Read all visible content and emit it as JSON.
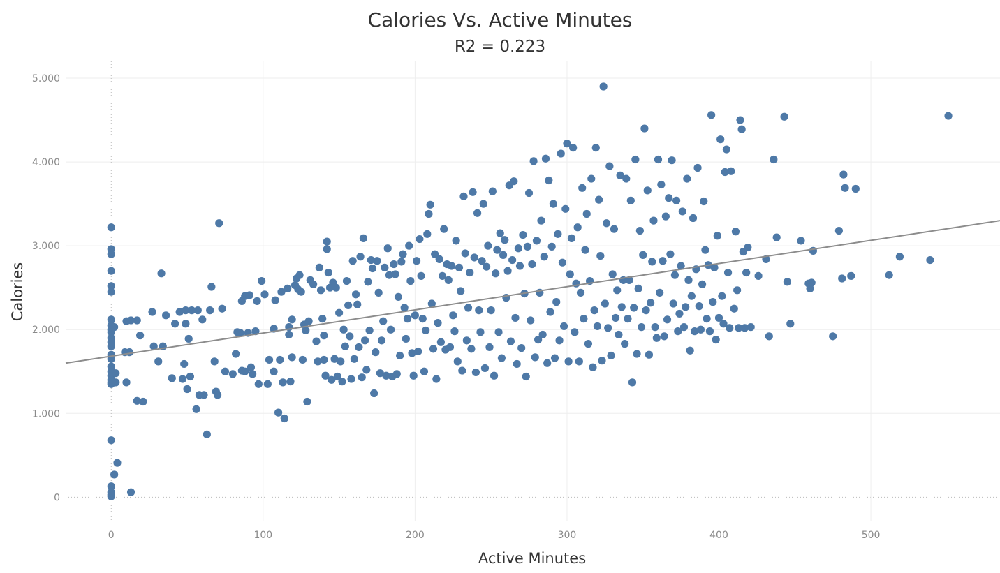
{
  "chart_data": {
    "type": "scatter",
    "title": "Calories Vs. Active Minutes",
    "subtitle": "R2 = 0.223",
    "xlabel": "Active Minutes",
    "ylabel": "Calories",
    "xlim": [
      -30,
      585
    ],
    "ylim": [
      -280,
      5200
    ],
    "xticks": [
      0,
      100,
      200,
      300,
      400,
      500
    ],
    "yticks": [
      0,
      1000,
      2000,
      3000,
      4000,
      5000
    ],
    "xtick_labels": [
      "0",
      "100",
      "200",
      "300",
      "400",
      "500"
    ],
    "ytick_labels": [
      "0",
      "1.000",
      "2.000",
      "3.000",
      "4.000",
      "5.000"
    ],
    "point_color": "#4e79a7",
    "trend_color": "#8c8c8c",
    "grid": true,
    "trendline": {
      "x": [
        -30,
        585
      ],
      "y": [
        1600,
        3300
      ]
    },
    "points": [
      [
        0,
        3220
      ],
      [
        0,
        2960
      ],
      [
        0,
        2900
      ],
      [
        0,
        2700
      ],
      [
        0,
        2520
      ],
      [
        0,
        2450
      ],
      [
        0,
        2120
      ],
      [
        0,
        2050
      ],
      [
        0,
        2000
      ],
      [
        0,
        1970
      ],
      [
        0,
        1900
      ],
      [
        0,
        1850
      ],
      [
        0,
        1800
      ],
      [
        0,
        1700
      ],
      [
        0,
        1650
      ],
      [
        0,
        1560
      ],
      [
        0,
        1500
      ],
      [
        0,
        1450
      ],
      [
        0,
        1400
      ],
      [
        0,
        1370
      ],
      [
        0,
        1350
      ],
      [
        0,
        680
      ],
      [
        0,
        130
      ],
      [
        0,
        60
      ],
      [
        0,
        30
      ],
      [
        0,
        10
      ],
      [
        2,
        2030
      ],
      [
        3,
        1480
      ],
      [
        3,
        1370
      ],
      [
        4,
        410
      ],
      [
        2,
        270
      ],
      [
        10,
        2100
      ],
      [
        9,
        1730
      ],
      [
        10,
        1370
      ],
      [
        12,
        1730
      ],
      [
        13,
        2110
      ],
      [
        13,
        60
      ],
      [
        17,
        2110
      ],
      [
        17,
        1150
      ],
      [
        21,
        1140
      ],
      [
        19,
        1930
      ],
      [
        27,
        2210
      ],
      [
        28,
        1800
      ],
      [
        31,
        1620
      ],
      [
        33,
        2670
      ],
      [
        34,
        1800
      ],
      [
        36,
        2170
      ],
      [
        40,
        1420
      ],
      [
        42,
        2070
      ],
      [
        45,
        2210
      ],
      [
        47,
        1410
      ],
      [
        48,
        1590
      ],
      [
        49,
        2230
      ],
      [
        49,
        2070
      ],
      [
        50,
        1290
      ],
      [
        51,
        1890
      ],
      [
        52,
        1440
      ],
      [
        53,
        2230
      ],
      [
        57,
        2230
      ],
      [
        56,
        1050
      ],
      [
        58,
        1220
      ],
      [
        60,
        2120
      ],
      [
        61,
        1220
      ],
      [
        63,
        750
      ],
      [
        65,
        2230
      ],
      [
        66,
        2510
      ],
      [
        68,
        1620
      ],
      [
        69,
        1260
      ],
      [
        70,
        1220
      ],
      [
        71,
        3270
      ],
      [
        73,
        2250
      ],
      [
        75,
        1500
      ],
      [
        80,
        1470
      ],
      [
        82,
        1710
      ],
      [
        83,
        1970
      ],
      [
        85,
        1960
      ],
      [
        86,
        1510
      ],
      [
        86,
        2340
      ],
      [
        88,
        2400
      ],
      [
        88,
        1500
      ],
      [
        90,
        1960
      ],
      [
        91,
        2410
      ],
      [
        92,
        1550
      ],
      [
        93,
        1470
      ],
      [
        95,
        1980
      ],
      [
        96,
        2340
      ],
      [
        97,
        1350
      ],
      [
        99,
        2580
      ],
      [
        101,
        2420
      ],
      [
        103,
        1350
      ],
      [
        104,
        1640
      ],
      [
        107,
        2010
      ],
      [
        107,
        1500
      ],
      [
        108,
        2350
      ],
      [
        110,
        1010
      ],
      [
        111,
        1640
      ],
      [
        112,
        2450
      ],
      [
        113,
        1370
      ],
      [
        114,
        940
      ],
      [
        116,
        2490
      ],
      [
        117,
        2030
      ],
      [
        117,
        1940
      ],
      [
        118,
        1380
      ],
      [
        119,
        2120
      ],
      [
        119,
        1670
      ],
      [
        121,
        2530
      ],
      [
        122,
        2610
      ],
      [
        123,
        2480
      ],
      [
        124,
        2650
      ],
      [
        125,
        2450
      ],
      [
        126,
        1640
      ],
      [
        127,
        2060
      ],
      [
        128,
        1990
      ],
      [
        129,
        1140
      ],
      [
        130,
        2100
      ],
      [
        131,
        2590
      ],
      [
        133,
        2540
      ],
      [
        135,
        1860
      ],
      [
        136,
        1620
      ],
      [
        137,
        2740
      ],
      [
        138,
        2470
      ],
      [
        139,
        2130
      ],
      [
        140,
        1930
      ],
      [
        140,
        1640
      ],
      [
        141,
        1450
      ],
      [
        142,
        3050
      ],
      [
        142,
        2960
      ],
      [
        143,
        2680
      ],
      [
        144,
        2500
      ],
      [
        145,
        1400
      ],
      [
        146,
        2560
      ],
      [
        147,
        1650
      ],
      [
        148,
        2500
      ],
      [
        149,
        1440
      ],
      [
        150,
        2200
      ],
      [
        151,
        1620
      ],
      [
        152,
        1380
      ],
      [
        153,
        2000
      ],
      [
        154,
        1800
      ],
      [
        155,
        2580
      ],
      [
        156,
        2290
      ],
      [
        157,
        1920
      ],
      [
        158,
        1410
      ],
      [
        159,
        2820
      ],
      [
        160,
        1650
      ],
      [
        161,
        2420
      ],
      [
        162,
        2300
      ],
      [
        163,
        1790
      ],
      [
        164,
        2870
      ],
      [
        165,
        1430
      ],
      [
        166,
        3090
      ],
      [
        167,
        1870
      ],
      [
        168,
        1520
      ],
      [
        169,
        2570
      ],
      [
        170,
        1990
      ],
      [
        171,
        2830
      ],
      [
        172,
        2730
      ],
      [
        173,
        1240
      ],
      [
        174,
        1730
      ],
      [
        175,
        2820
      ],
      [
        176,
        2440
      ],
      [
        177,
        1480
      ],
      [
        178,
        1870
      ],
      [
        179,
        2100
      ],
      [
        180,
        2740
      ],
      [
        181,
        1450
      ],
      [
        182,
        2970
      ],
      [
        183,
        2650
      ],
      [
        184,
        2000
      ],
      [
        185,
        1440
      ],
      [
        186,
        2780
      ],
      [
        187,
        2660
      ],
      [
        188,
        1470
      ],
      [
        189,
        2390
      ],
      [
        190,
        1690
      ],
      [
        191,
        2810
      ],
      [
        192,
        2900
      ],
      [
        193,
        2260
      ],
      [
        194,
        1890
      ],
      [
        195,
        2130
      ],
      [
        196,
        3000
      ],
      [
        197,
        2580
      ],
      [
        198,
        1720
      ],
      [
        199,
        1450
      ],
      [
        200,
        2170
      ],
      [
        201,
        2820
      ],
      [
        202,
        1740
      ],
      [
        203,
        3080
      ],
      [
        204,
        2640
      ],
      [
        205,
        2130
      ],
      [
        206,
        1500
      ],
      [
        207,
        1990
      ],
      [
        208,
        3140
      ],
      [
        209,
        3380
      ],
      [
        210,
        3490
      ],
      [
        211,
        2310
      ],
      [
        212,
        1770
      ],
      [
        213,
        2900
      ],
      [
        214,
        1410
      ],
      [
        215,
        2080
      ],
      [
        216,
        2840
      ],
      [
        217,
        1850
      ],
      [
        218,
        2640
      ],
      [
        219,
        3200
      ],
      [
        220,
        1760
      ],
      [
        221,
        2780
      ],
      [
        222,
        2590
      ],
      [
        223,
        1790
      ],
      [
        224,
        2760
      ],
      [
        225,
        2170
      ],
      [
        226,
        1980
      ],
      [
        227,
        3060
      ],
      [
        228,
        1620
      ],
      [
        229,
        2740
      ],
      [
        230,
        2460
      ],
      [
        231,
        1510
      ],
      [
        232,
        3590
      ],
      [
        233,
        2910
      ],
      [
        234,
        1870
      ],
      [
        235,
        2260
      ],
      [
        236,
        2680
      ],
      [
        237,
        1770
      ],
      [
        238,
        3640
      ],
      [
        239,
        2860
      ],
      [
        240,
        1490
      ],
      [
        241,
        3390
      ],
      [
        242,
        2230
      ],
      [
        243,
        1970
      ],
      [
        244,
        2820
      ],
      [
        245,
        3500
      ],
      [
        246,
        1540
      ],
      [
        247,
        2750
      ],
      [
        248,
        3000
      ],
      [
        249,
        1790
      ],
      [
        250,
        2230
      ],
      [
        251,
        3650
      ],
      [
        252,
        1450
      ],
      [
        253,
        2670
      ],
      [
        254,
        2950
      ],
      [
        255,
        1970
      ],
      [
        256,
        3150
      ],
      [
        257,
        1660
      ],
      [
        258,
        2890
      ],
      [
        259,
        3070
      ],
      [
        260,
        2380
      ],
      [
        261,
        2700
      ],
      [
        262,
        3720
      ],
      [
        263,
        1860
      ],
      [
        264,
        2830
      ],
      [
        265,
        3770
      ],
      [
        266,
        2140
      ],
      [
        267,
        1590
      ],
      [
        268,
        2970
      ],
      [
        269,
        2760
      ],
      [
        270,
        1780
      ],
      [
        271,
        3130
      ],
      [
        272,
        2430
      ],
      [
        273,
        1440
      ],
      [
        274,
        2990
      ],
      [
        275,
        3630
      ],
      [
        276,
        2110
      ],
      [
        277,
        2780
      ],
      [
        278,
        4010
      ],
      [
        279,
        1670
      ],
      [
        280,
        3060
      ],
      [
        281,
        1880
      ],
      [
        282,
        2440
      ],
      [
        283,
        3300
      ],
      [
        284,
        1940
      ],
      [
        285,
        2870
      ],
      [
        286,
        4040
      ],
      [
        287,
        1600
      ],
      [
        288,
        3780
      ],
      [
        289,
        2210
      ],
      [
        290,
        2990
      ],
      [
        291,
        3500
      ],
      [
        292,
        1660
      ],
      [
        293,
        2330
      ],
      [
        294,
        3140
      ],
      [
        295,
        1870
      ],
      [
        296,
        4100
      ],
      [
        297,
        2800
      ],
      [
        298,
        2040
      ],
      [
        299,
        3440
      ],
      [
        300,
        4220
      ],
      [
        301,
        1620
      ],
      [
        302,
        2660
      ],
      [
        303,
        3090
      ],
      [
        304,
        4170
      ],
      [
        305,
        1970
      ],
      [
        306,
        2550
      ],
      [
        307,
        3220
      ],
      [
        308,
        1620
      ],
      [
        309,
        2440
      ],
      [
        310,
        3690
      ],
      [
        311,
        2130
      ],
      [
        312,
        2950
      ],
      [
        313,
        3380
      ],
      [
        314,
        1830
      ],
      [
        315,
        2580
      ],
      [
        316,
        3800
      ],
      [
        317,
        1550
      ],
      [
        318,
        2230
      ],
      [
        319,
        4170
      ],
      [
        320,
        2040
      ],
      [
        321,
        3550
      ],
      [
        322,
        2880
      ],
      [
        323,
        1630
      ],
      [
        324,
        4900
      ],
      [
        325,
        2310
      ],
      [
        326,
        3270
      ],
      [
        327,
        2020
      ],
      [
        328,
        3950
      ],
      [
        329,
        1690
      ],
      [
        330,
        2660
      ],
      [
        331,
        3200
      ],
      [
        332,
        2140
      ],
      [
        333,
        2470
      ],
      [
        334,
        1940
      ],
      [
        335,
        3840
      ],
      [
        336,
        2270
      ],
      [
        337,
        2590
      ],
      [
        338,
        1830
      ],
      [
        339,
        3800
      ],
      [
        340,
        2130
      ],
      [
        341,
        2590
      ],
      [
        342,
        3540
      ],
      [
        343,
        1370
      ],
      [
        344,
        2260
      ],
      [
        345,
        4030
      ],
      [
        346,
        1710
      ],
      [
        347,
        2490
      ],
      [
        348,
        3180
      ],
      [
        349,
        2030
      ],
      [
        350,
        2890
      ],
      [
        351,
        4400
      ],
      [
        352,
        2230
      ],
      [
        353,
        3660
      ],
      [
        354,
        1700
      ],
      [
        355,
        2320
      ],
      [
        356,
        2810
      ],
      [
        357,
        3300
      ],
      [
        358,
        2030
      ],
      [
        359,
        1900
      ],
      [
        360,
        4030
      ],
      [
        361,
        2440
      ],
      [
        362,
        3730
      ],
      [
        363,
        2820
      ],
      [
        364,
        1920
      ],
      [
        365,
        3350
      ],
      [
        366,
        2120
      ],
      [
        367,
        3570
      ],
      [
        368,
        2900
      ],
      [
        369,
        4020
      ],
      [
        370,
        2310
      ],
      [
        371,
        2650
      ],
      [
        372,
        3540
      ],
      [
        373,
        1980
      ],
      [
        374,
        2190
      ],
      [
        375,
        2760
      ],
      [
        376,
        3410
      ],
      [
        377,
        2030
      ],
      [
        378,
        2270
      ],
      [
        379,
        3800
      ],
      [
        380,
        2590
      ],
      [
        381,
        1750
      ],
      [
        382,
        2400
      ],
      [
        383,
        3330
      ],
      [
        384,
        1980
      ],
      [
        385,
        2720
      ],
      [
        386,
        3930
      ],
      [
        387,
        2280
      ],
      [
        388,
        2000
      ],
      [
        389,
        2540
      ],
      [
        390,
        3530
      ],
      [
        391,
        2950
      ],
      [
        392,
        2130
      ],
      [
        393,
        2770
      ],
      [
        394,
        1980
      ],
      [
        395,
        4560
      ],
      [
        396,
        2330
      ],
      [
        397,
        2740
      ],
      [
        398,
        1880
      ],
      [
        399,
        3120
      ],
      [
        400,
        2140
      ],
      [
        401,
        4270
      ],
      [
        402,
        2400
      ],
      [
        403,
        2070
      ],
      [
        404,
        3880
      ],
      [
        405,
        4150
      ],
      [
        406,
        2680
      ],
      [
        407,
        2020
      ],
      [
        408,
        3890
      ],
      [
        410,
        2250
      ],
      [
        411,
        3170
      ],
      [
        412,
        2470
      ],
      [
        413,
        2020
      ],
      [
        414,
        4500
      ],
      [
        415,
        4390
      ],
      [
        416,
        2930
      ],
      [
        417,
        2020
      ],
      [
        418,
        2680
      ],
      [
        419,
        2980
      ],
      [
        421,
        2030
      ],
      [
        426,
        2640
      ],
      [
        431,
        2840
      ],
      [
        433,
        1920
      ],
      [
        436,
        4030
      ],
      [
        438,
        3100
      ],
      [
        443,
        4540
      ],
      [
        445,
        2570
      ],
      [
        447,
        2070
      ],
      [
        454,
        3060
      ],
      [
        459,
        2550
      ],
      [
        460,
        2490
      ],
      [
        461,
        2560
      ],
      [
        462,
        2940
      ],
      [
        475,
        1920
      ],
      [
        479,
        3180
      ],
      [
        481,
        2610
      ],
      [
        482,
        3850
      ],
      [
        483,
        3690
      ],
      [
        487,
        2640
      ],
      [
        490,
        3680
      ],
      [
        512,
        2650
      ],
      [
        519,
        2870
      ],
      [
        539,
        2830
      ],
      [
        551,
        4550
      ]
    ]
  }
}
